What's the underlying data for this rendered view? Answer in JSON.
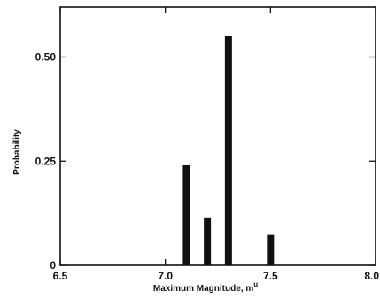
{
  "chart_data": {
    "type": "bar",
    "title": "",
    "xlabel": "Maximum Magnitude, m",
    "xlabel_superscript": "u",
    "ylabel": "Probability",
    "xlim": [
      6.5,
      8.0
    ],
    "ylim": [
      0,
      0.62
    ],
    "x_ticks": [
      6.5,
      7.0,
      7.5,
      8.0
    ],
    "x_tick_labels": [
      "6.5",
      "7.0",
      "7.5",
      "8.0"
    ],
    "y_ticks": [
      0,
      0.25,
      0.5
    ],
    "y_tick_labels": [
      "0",
      "0.25",
      "0.50"
    ],
    "grid": false,
    "legend": "none",
    "bar_color": "#111111",
    "bars": [
      {
        "x": 7.1,
        "value": 0.24
      },
      {
        "x": 7.2,
        "value": 0.115
      },
      {
        "x": 7.3,
        "value": 0.55
      },
      {
        "x": 7.5,
        "value": 0.073
      }
    ]
  }
}
